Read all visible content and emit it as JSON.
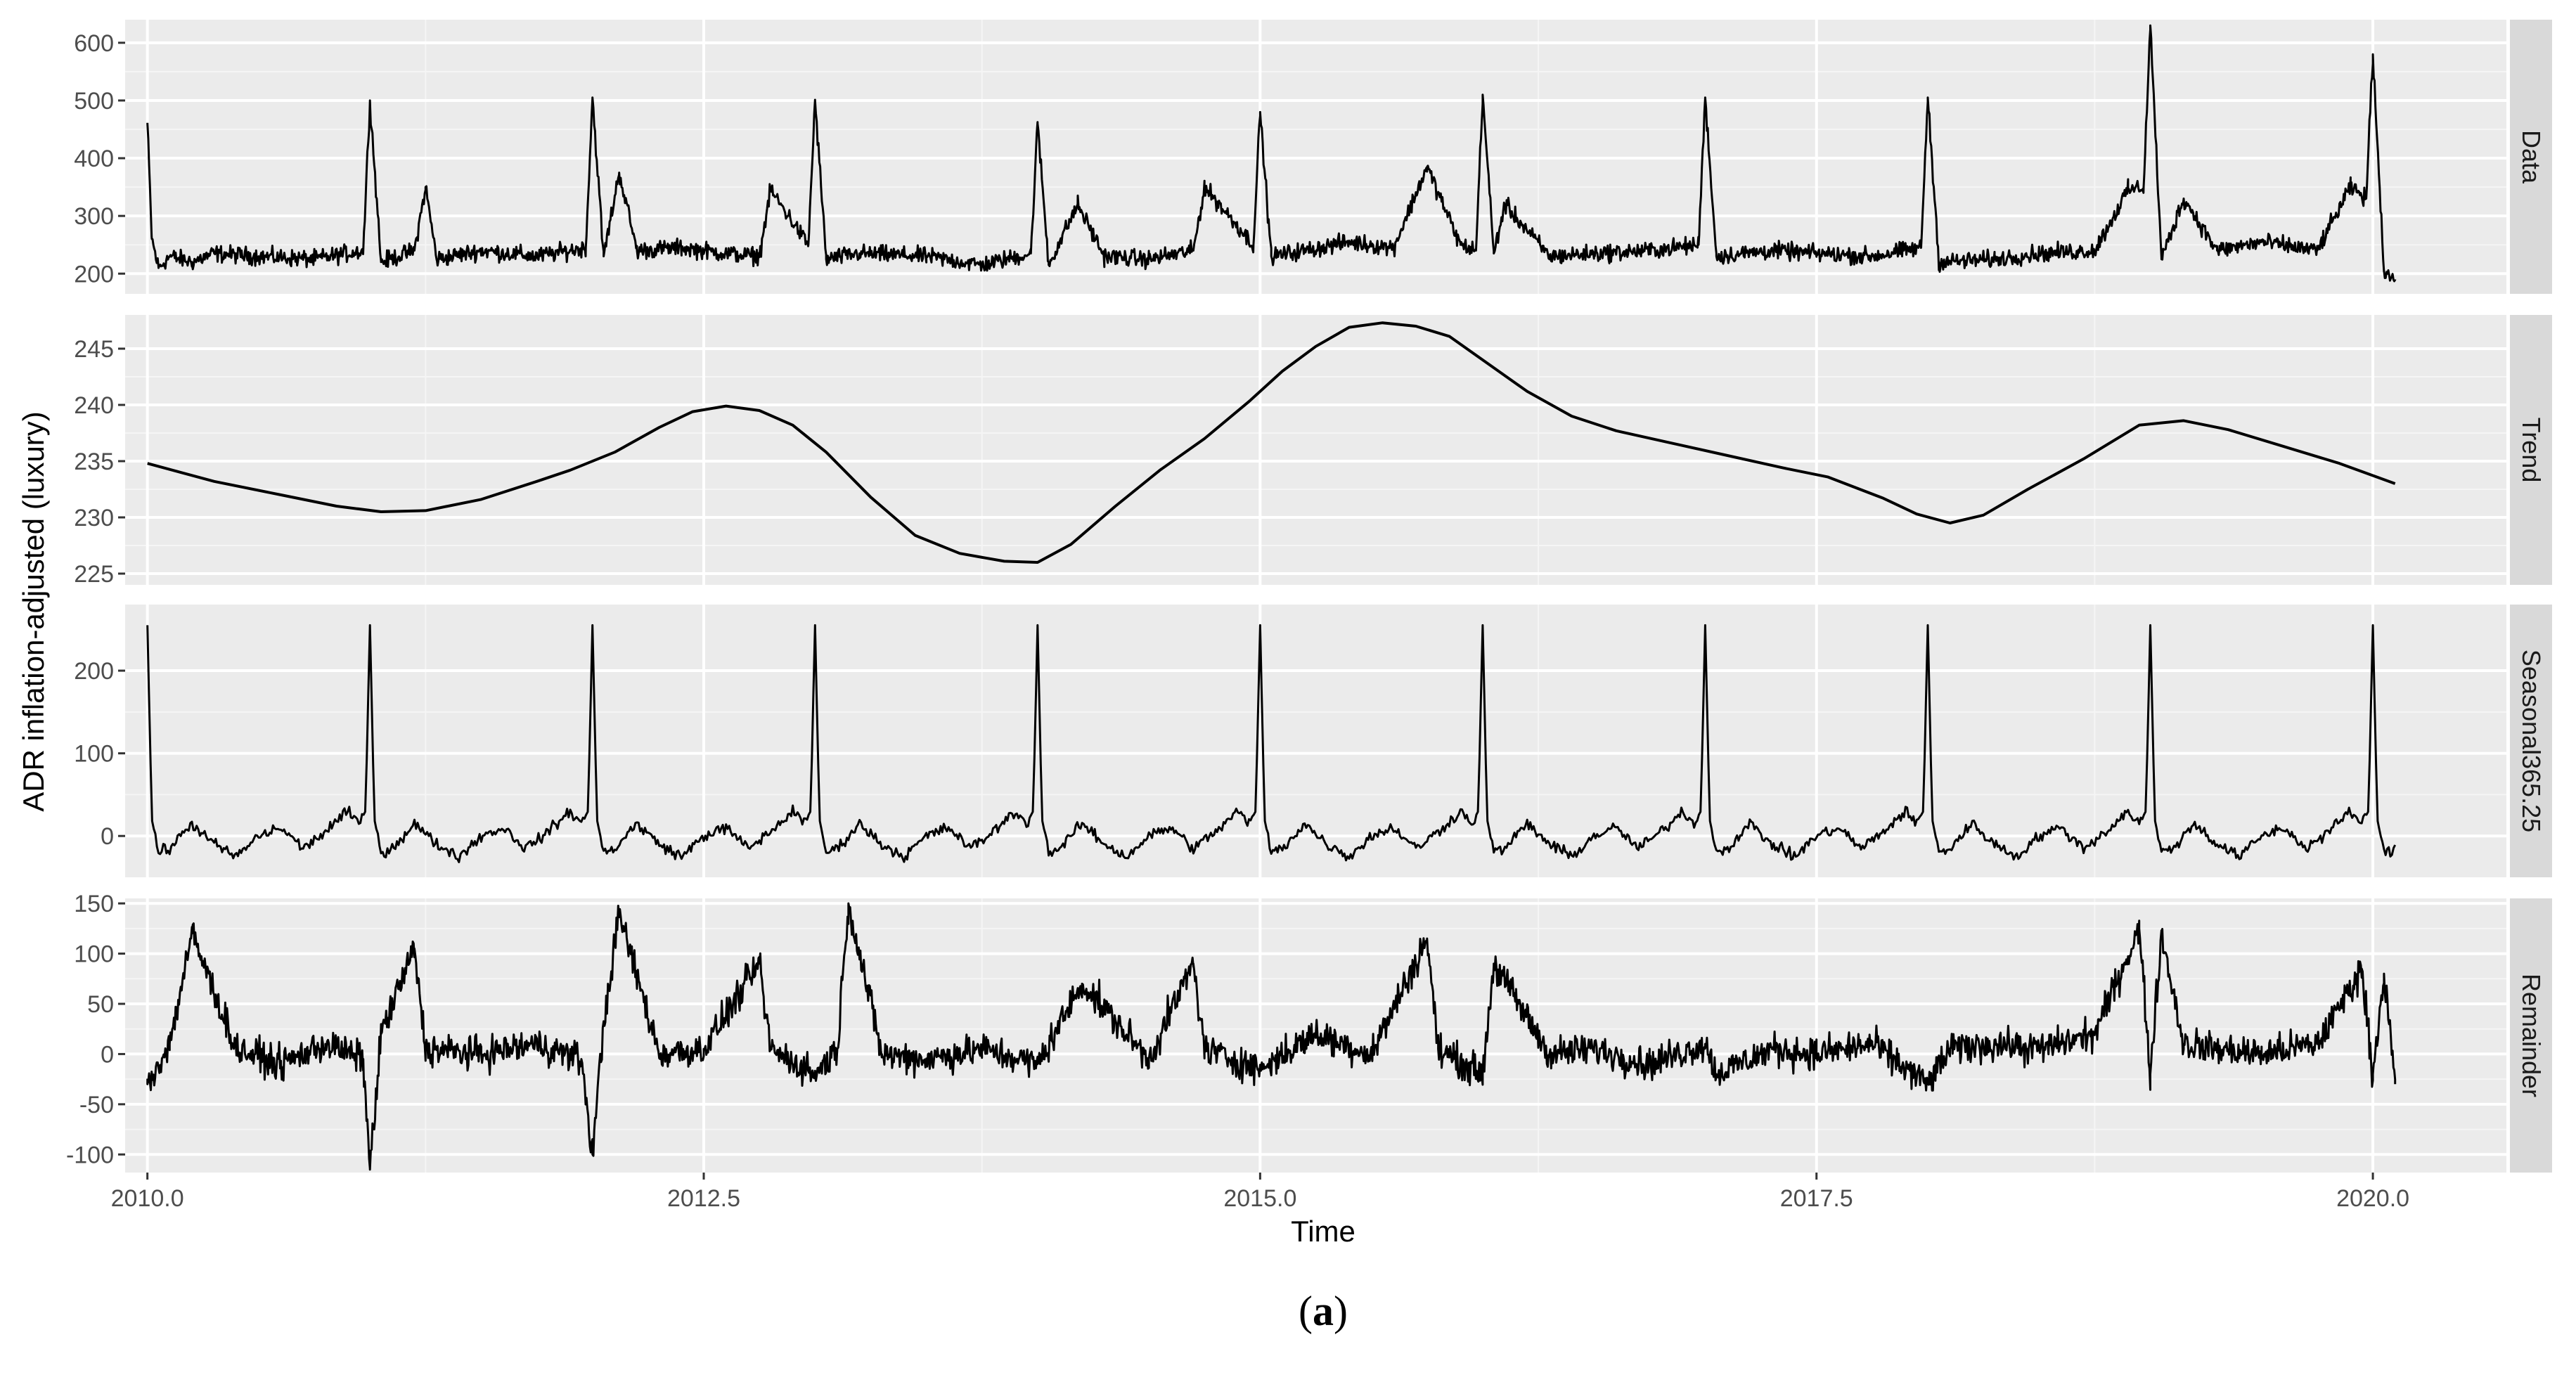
{
  "chart_data": {
    "type": "line",
    "title": "",
    "xlabel": "Time",
    "ylabel": "ADR inflation-adjusted (luxury)",
    "caption": {
      "open": "(",
      "letter": "a",
      "close": ")"
    },
    "xlim": [
      2009.9,
      2020.6
    ],
    "x_ticks": [
      2010.0,
      2012.5,
      2015.0,
      2017.5,
      2020.0
    ],
    "x_tick_labels": [
      "2010.0",
      "2012.5",
      "2015.0",
      "2017.5",
      "2020.0"
    ],
    "grid": true,
    "panel_background": "#ebebeb",
    "strip_background": "#d9d9d9",
    "line_color": "#000000",
    "panels": [
      {
        "name": "Data",
        "ylim": [
          165,
          640
        ],
        "y_ticks": [
          200,
          300,
          400,
          500,
          600
        ],
        "y_tick_labels": [
          "200",
          "300",
          "400",
          "500",
          "600"
        ],
        "x": [
          2010.0,
          2010.02,
          2010.05,
          2010.1,
          2010.2,
          2010.3,
          2010.5,
          2010.75,
          2010.97,
          2011.0,
          2011.05,
          2011.2,
          2011.25,
          2011.3,
          2011.5,
          2011.75,
          2011.97,
          2012.0,
          2012.05,
          2012.12,
          2012.2,
          2012.4,
          2012.6,
          2012.75,
          2012.8,
          2012.97,
          2013.0,
          2013.05,
          2013.2,
          2013.5,
          2013.75,
          2013.97,
          2014.0,
          2014.05,
          2014.18,
          2014.3,
          2014.5,
          2014.7,
          2014.75,
          2014.97,
          2015.0,
          2015.05,
          2015.2,
          2015.4,
          2015.6,
          2015.75,
          2015.9,
          2015.97,
          2016.0,
          2016.05,
          2016.1,
          2016.3,
          2016.5,
          2016.75,
          2016.97,
          2017.0,
          2017.05,
          2017.3,
          2017.5,
          2017.75,
          2017.97,
          2018.0,
          2018.05,
          2018.3,
          2018.5,
          2018.75,
          2018.9,
          2018.97,
          2019.0,
          2019.05,
          2019.15,
          2019.3,
          2019.5,
          2019.75,
          2019.9,
          2019.97,
          2020.0,
          2020.05,
          2020.1
        ],
        "values": [
          460,
          260,
          210,
          230,
          220,
          235,
          230,
          225,
          240,
          500,
          220,
          240,
          350,
          225,
          240,
          230,
          245,
          505,
          230,
          375,
          240,
          245,
          235,
          230,
          345,
          250,
          500,
          225,
          235,
          230,
          215,
          235,
          460,
          215,
          320,
          230,
          225,
          240,
          350,
          250,
          480,
          230,
          240,
          255,
          245,
          385,
          250,
          240,
          510,
          235,
          320,
          230,
          235,
          240,
          250,
          505,
          230,
          240,
          235,
          230,
          245,
          505,
          220,
          225,
          235,
          240,
          345,
          350,
          630,
          225,
          330,
          240,
          255,
          240,
          350,
          330,
          580,
          205,
          190
        ]
      },
      {
        "name": "Trend",
        "ylim": [
          224,
          248
        ],
        "y_ticks": [
          225,
          230,
          235,
          240,
          245
        ],
        "y_tick_labels": [
          "225",
          "230",
          "235",
          "240",
          "245"
        ],
        "x": [
          2010.0,
          2010.3,
          2010.6,
          2010.85,
          2011.05,
          2011.25,
          2011.5,
          2011.75,
          2011.9,
          2012.1,
          2012.3,
          2012.45,
          2012.6,
          2012.75,
          2012.9,
          2013.05,
          2013.25,
          2013.45,
          2013.65,
          2013.85,
          2014.0,
          2014.15,
          2014.35,
          2014.55,
          2014.75,
          2014.95,
          2015.1,
          2015.25,
          2015.4,
          2015.55,
          2015.7,
          2015.85,
          2016.0,
          2016.2,
          2016.4,
          2016.6,
          2016.85,
          2017.1,
          2017.35,
          2017.55,
          2017.8,
          2017.95,
          2018.1,
          2018.25,
          2018.45,
          2018.7,
          2018.95,
          2019.15,
          2019.35,
          2019.6,
          2019.85,
          2020.1
        ],
        "values": [
          234.8,
          233.2,
          232.0,
          231.0,
          230.5,
          230.6,
          231.6,
          233.2,
          234.2,
          235.8,
          238.0,
          239.4,
          239.9,
          239.5,
          238.2,
          235.8,
          231.8,
          228.4,
          226.8,
          226.1,
          226.0,
          227.6,
          231.0,
          234.2,
          237.0,
          240.3,
          243.0,
          245.2,
          246.9,
          247.3,
          247.0,
          246.1,
          244.0,
          241.2,
          239.0,
          237.7,
          236.6,
          235.5,
          234.4,
          233.6,
          231.7,
          230.3,
          229.5,
          230.2,
          232.5,
          235.2,
          238.2,
          238.6,
          237.8,
          236.3,
          234.8,
          233.0
        ]
      },
      {
        "name": "Seasonal365.25",
        "ylim": [
          -50,
          280
        ],
        "y_ticks": [
          0,
          100,
          200
        ],
        "y_tick_labels": [
          "0",
          "100",
          "200"
        ],
        "seasonal_period": 1.0,
        "seasonal_cycle_x": [
          0.0,
          0.02,
          0.05,
          0.1,
          0.2,
          0.3,
          0.4,
          0.5,
          0.6,
          0.7,
          0.8,
          0.9,
          0.95,
          0.98,
          1.0
        ],
        "seasonal_cycle_values": [
          255,
          20,
          -20,
          -15,
          15,
          -10,
          -25,
          0,
          10,
          -15,
          5,
          30,
          15,
          30,
          255
        ]
      },
      {
        "name": "Remainder",
        "ylim": [
          -118,
          155
        ],
        "y_ticks": [
          -100,
          -50,
          0,
          50,
          100,
          150
        ],
        "y_tick_labels": [
          "-100",
          "-50",
          "0",
          "50",
          "100",
          "150"
        ],
        "x": [
          2010.0,
          2010.1,
          2010.2,
          2010.4,
          2010.6,
          2010.8,
          2010.97,
          2011.0,
          2011.05,
          2011.2,
          2011.25,
          2011.5,
          2011.75,
          2011.95,
          2012.0,
          2012.05,
          2012.12,
          2012.3,
          2012.5,
          2012.75,
          2012.8,
          2013.0,
          2013.1,
          2013.15,
          2013.3,
          2013.5,
          2013.75,
          2014.0,
          2014.2,
          2014.5,
          2014.7,
          2014.75,
          2015.0,
          2015.25,
          2015.5,
          2015.75,
          2015.8,
          2016.0,
          2016.05,
          2016.3,
          2016.5,
          2016.75,
          2017.0,
          2017.05,
          2017.3,
          2017.5,
          2017.75,
          2018.0,
          2018.1,
          2018.3,
          2018.5,
          2018.75,
          2018.95,
          2019.0,
          2019.05,
          2019.15,
          2019.3,
          2019.5,
          2019.75,
          2019.95,
          2020.0,
          2020.05,
          2020.1
        ],
        "values": [
          -30,
          10,
          120,
          5,
          -10,
          10,
          -5,
          -115,
          20,
          105,
          5,
          0,
          10,
          -5,
          -100,
          30,
          140,
          0,
          5,
          90,
          5,
          -20,
          5,
          150,
          0,
          -5,
          5,
          -10,
          70,
          -5,
          90,
          5,
          -15,
          20,
          0,
          115,
          5,
          -20,
          90,
          0,
          5,
          -10,
          10,
          -20,
          5,
          0,
          10,
          -30,
          5,
          10,
          5,
          20,
          125,
          -20,
          120,
          10,
          5,
          0,
          10,
          85,
          -20,
          80,
          -30
        ]
      }
    ]
  }
}
